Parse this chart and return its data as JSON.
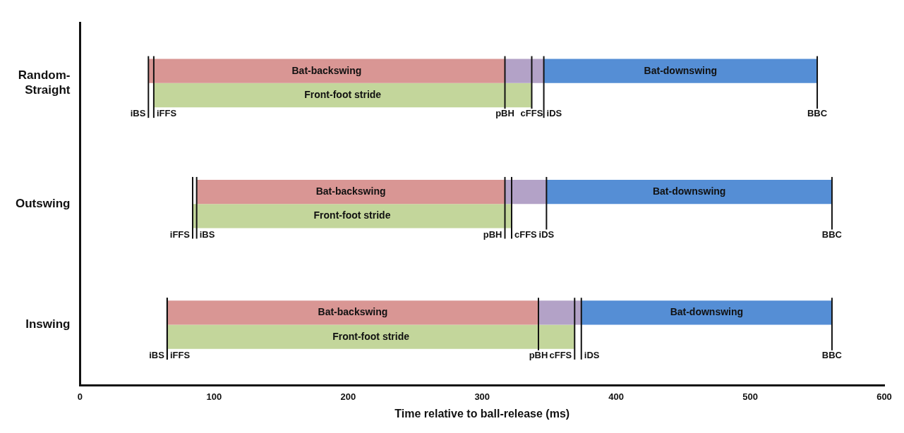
{
  "chart_data": {
    "type": "bar",
    "orientation": "horizontal",
    "categories": [
      "Random-Straight",
      "Outswing",
      "Inswing"
    ],
    "xlabel": "Time relative to ball-release (ms)",
    "xlim": [
      0,
      600
    ],
    "xticks": [
      0,
      100,
      200,
      300,
      400,
      500,
      600
    ],
    "grid": false,
    "legend": false,
    "series": [
      {
        "name": "Bat-backswing",
        "color": "#d99694",
        "base": [
          51,
          87,
          65
        ],
        "values": [
          266,
          230,
          277
        ]
      },
      {
        "color": "#b3a2c7",
        "base": [
          317,
          317,
          342
        ],
        "values": [
          29,
          31,
          32
        ]
      },
      {
        "name": "Bat-downswing",
        "color": "#558ed5",
        "base": [
          346,
          348,
          374
        ],
        "values": [
          204,
          213,
          187
        ]
      },
      {
        "name": "Front-foot stride",
        "color": "#c3d69b",
        "base": [
          55,
          84,
          65
        ],
        "values": [
          282,
          238,
          304
        ]
      }
    ],
    "annotations": [
      {
        "text": "iBS",
        "x": 51,
        "y": "Random-Straight"
      },
      {
        "text": "iFFS",
        "x": 55,
        "y": "Random-Straight"
      },
      {
        "text": "pBH",
        "x": 317,
        "y": "Random-Straight"
      },
      {
        "text": "cFFS",
        "x": 337,
        "y": "Random-Straight"
      },
      {
        "text": "iDS",
        "x": 346,
        "y": "Random-Straight"
      },
      {
        "text": "BBC",
        "x": 550,
        "y": "Random-Straight"
      },
      {
        "text": "iFFS",
        "x": 84,
        "y": "Outswing"
      },
      {
        "text": "iBS",
        "x": 87,
        "y": "Outswing"
      },
      {
        "text": "pBH",
        "x": 317,
        "y": "Outswing"
      },
      {
        "text": "cFFS",
        "x": 322,
        "y": "Outswing"
      },
      {
        "text": "iDS",
        "x": 348,
        "y": "Outswing"
      },
      {
        "text": "BBC",
        "x": 561,
        "y": "Outswing"
      },
      {
        "text": "iBS",
        "x": 65,
        "y": "Inswing"
      },
      {
        "text": "iFFS",
        "x": 65,
        "y": "Inswing"
      },
      {
        "text": "pBH",
        "x": 342,
        "y": "Inswing"
      },
      {
        "text": "cFFS",
        "x": 369,
        "y": "Inswing"
      },
      {
        "text": "iDS",
        "x": 374,
        "y": "Inswing"
      },
      {
        "text": "BBC",
        "x": 561,
        "y": "Inswing"
      }
    ]
  }
}
